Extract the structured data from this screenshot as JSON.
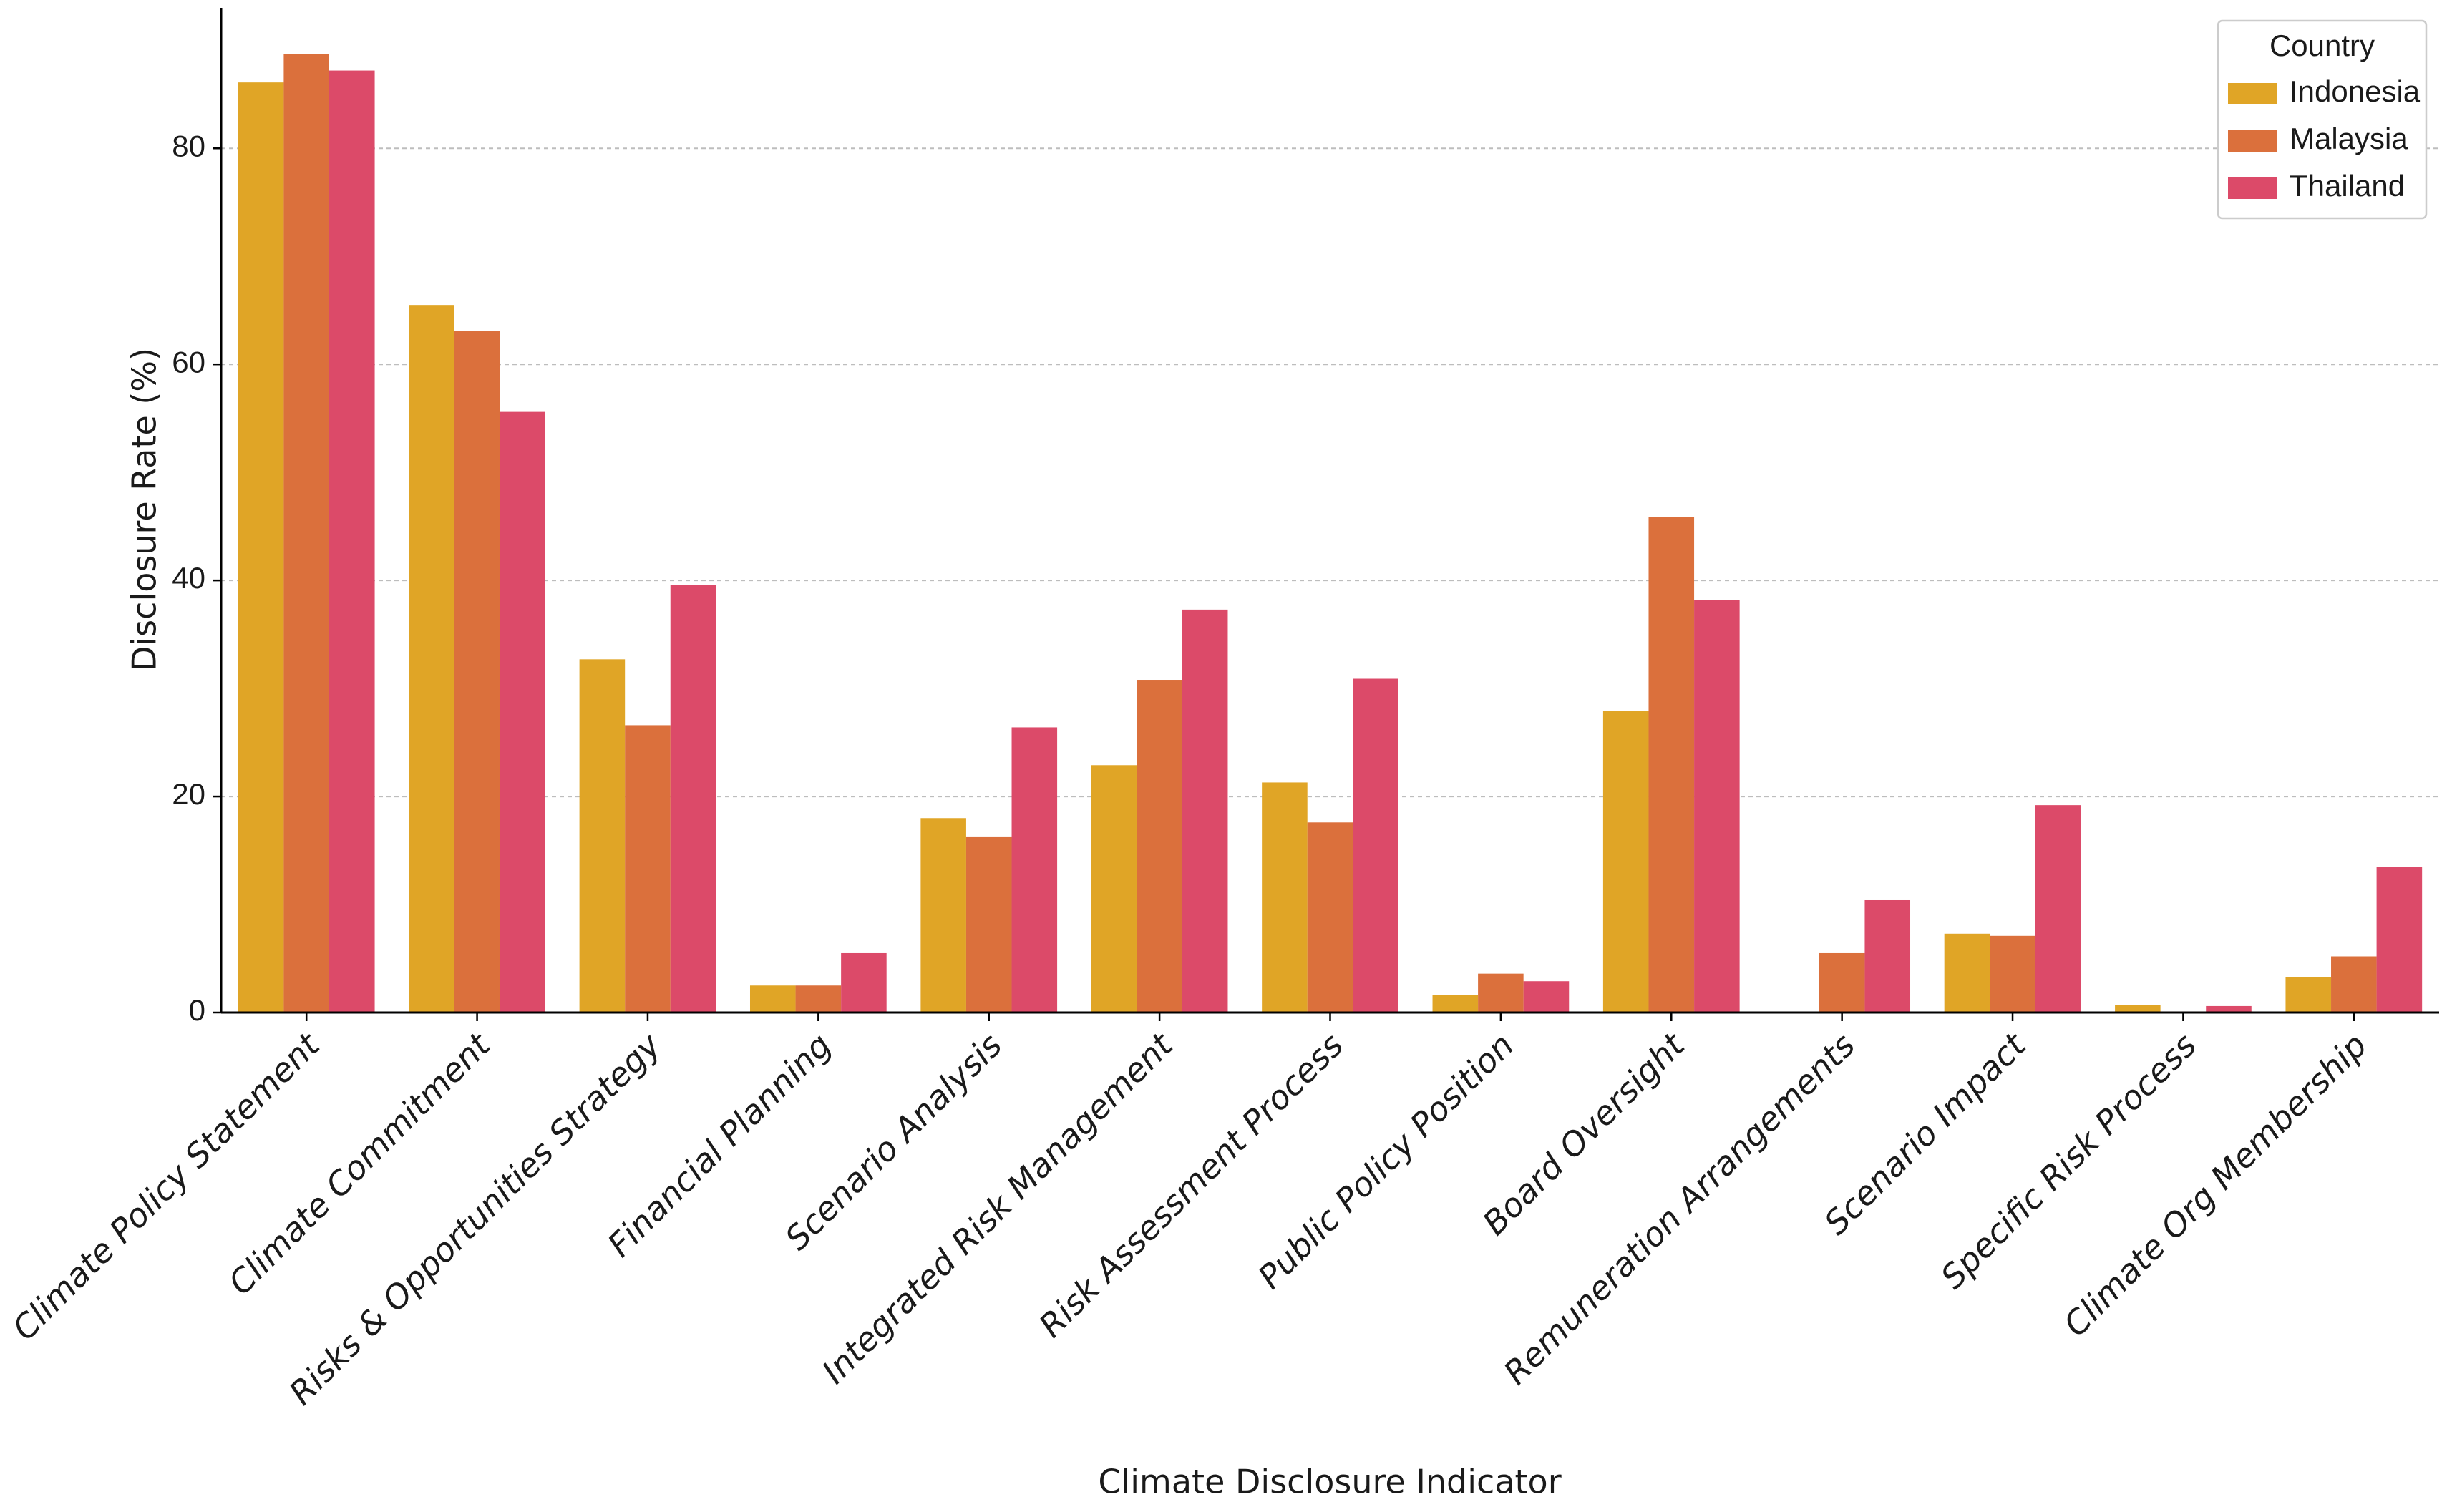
{
  "chart_data": {
    "type": "bar",
    "x_label": "Climate Disclosure Indicator",
    "y_label": "Disclosure Rate (%)",
    "legend_title": "Country",
    "legend_position": "upper right",
    "grid": true,
    "categories": [
      "Climate Policy Statement",
      "Climate Commitment",
      "Risks & Opportunities Strategy",
      "Financial Planning",
      "Scenario Analysis",
      "Integrated Risk Management",
      "Risk Assessment Process",
      "Public Policy Position",
      "Board Oversight",
      "Remuneration Arrangements",
      "Scenario Impact",
      "Specific Risk Process",
      "Climate Org Membership"
    ],
    "series": [
      {
        "name": "Indonesia",
        "color": "#e0a526",
        "values": [
          86.1,
          65.5,
          32.7,
          2.5,
          18.0,
          22.9,
          21.3,
          1.6,
          27.9,
          0,
          7.3,
          0.7,
          3.3
        ]
      },
      {
        "name": "Malaysia",
        "color": "#db703c",
        "values": [
          88.7,
          63.1,
          26.6,
          2.5,
          16.3,
          30.8,
          17.6,
          3.6,
          45.9,
          5.5,
          7.1,
          0.1,
          5.2
        ]
      },
      {
        "name": "Thailand",
        "color": "#dc4a69",
        "values": [
          87.2,
          55.6,
          39.6,
          5.5,
          26.4,
          37.3,
          30.9,
          2.9,
          38.2,
          10.4,
          19.2,
          0.6,
          13.5
        ]
      }
    ],
    "ylim": [
      0,
      93
    ],
    "yticks": [
      0,
      20,
      40,
      60,
      80
    ]
  }
}
